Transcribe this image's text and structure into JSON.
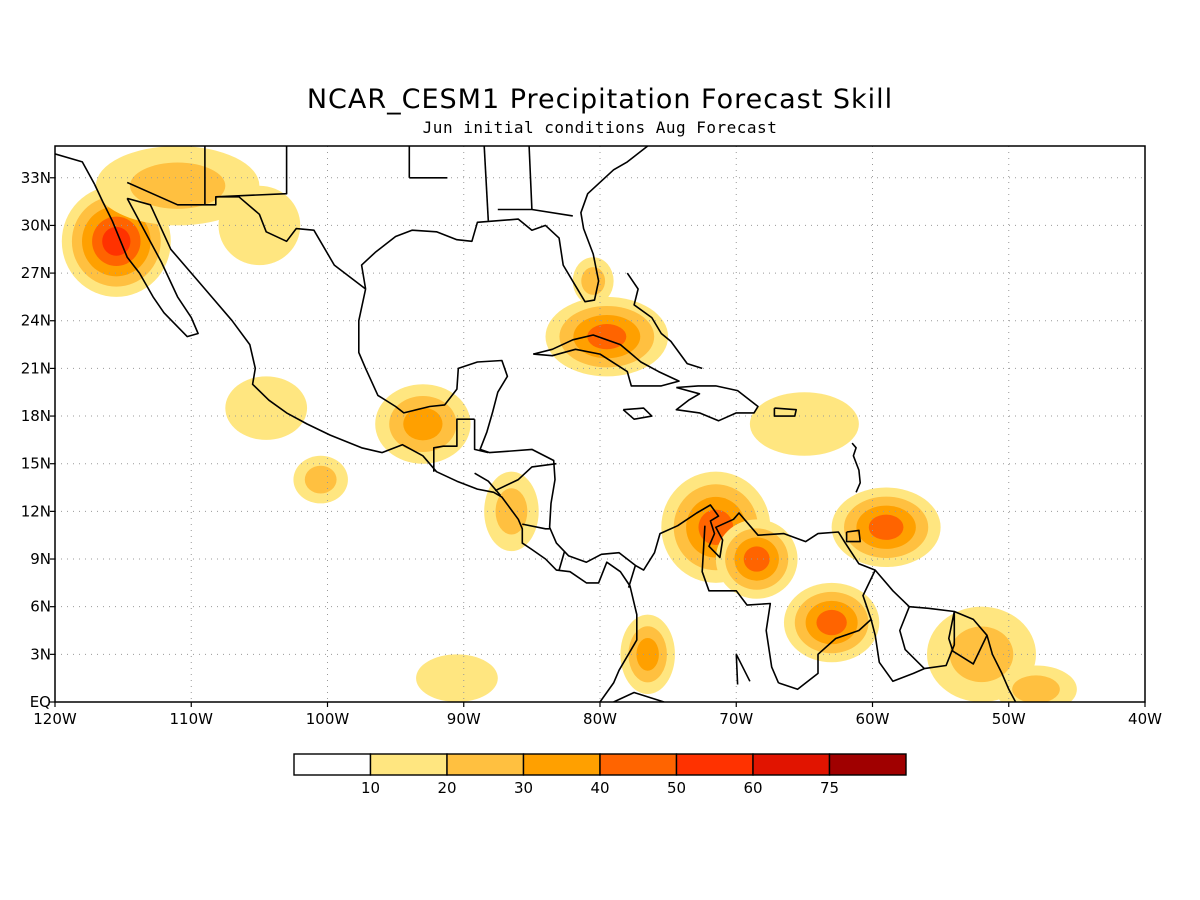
{
  "title": "NCAR_CESM1 Precipitation Forecast Skill",
  "subtitle": "Jun initial conditions  Aug Forecast",
  "map": {
    "lon_range": [
      -120,
      -40
    ],
    "lat_range": [
      0,
      35
    ],
    "lon_ticks": [
      {
        "lon": -120,
        "label": "120W"
      },
      {
        "lon": -110,
        "label": "110W"
      },
      {
        "lon": -100,
        "label": "100W"
      },
      {
        "lon": -90,
        "label": "90W"
      },
      {
        "lon": -80,
        "label": "80W"
      },
      {
        "lon": -70,
        "label": "70W"
      },
      {
        "lon": -60,
        "label": "60W"
      },
      {
        "lon": -50,
        "label": "50W"
      },
      {
        "lon": -40,
        "label": "40W"
      }
    ],
    "lat_ticks": [
      {
        "lat": 0,
        "label": "EQ"
      },
      {
        "lat": 3,
        "label": "3N"
      },
      {
        "lat": 6,
        "label": "6N"
      },
      {
        "lat": 9,
        "label": "9N"
      },
      {
        "lat": 12,
        "label": "12N"
      },
      {
        "lat": 15,
        "label": "15N"
      },
      {
        "lat": 18,
        "label": "18N"
      },
      {
        "lat": 21,
        "label": "21N"
      },
      {
        "lat": 24,
        "label": "24N"
      },
      {
        "lat": 27,
        "label": "27N"
      },
      {
        "lat": 30,
        "label": "30N"
      },
      {
        "lat": 33,
        "label": "33N"
      }
    ],
    "grid": "dotted",
    "skill_regions": [
      {
        "name": "baja-california",
        "peak": 60,
        "lon": -115.5,
        "lat": 29.0,
        "rlon": 4.0,
        "rlat": 3.5
      },
      {
        "name": "northwest-mexico",
        "peak": 30,
        "lon": -111.0,
        "lat": 32.5,
        "rlon": 6.0,
        "rlat": 2.5
      },
      {
        "name": "southern-arizona",
        "peak": 20,
        "lon": -105.0,
        "lat": 30.0,
        "rlon": 3.0,
        "rlat": 2.5
      },
      {
        "name": "western-mexico-coast",
        "peak": 20,
        "lon": -104.5,
        "lat": 18.5,
        "rlon": 3.0,
        "rlat": 2.0
      },
      {
        "name": "eastern-pacific",
        "peak": 30,
        "lon": -100.5,
        "lat": 14.0,
        "rlon": 2.0,
        "rlat": 1.5
      },
      {
        "name": "southern-mexico",
        "peak": 40,
        "lon": -93.0,
        "lat": 17.5,
        "rlon": 3.5,
        "rlat": 2.5
      },
      {
        "name": "central-america",
        "peak": 30,
        "lon": -86.5,
        "lat": 12.0,
        "rlon": 2.0,
        "rlat": 2.5
      },
      {
        "name": "cuba",
        "peak": 50,
        "lon": -79.5,
        "lat": 23.0,
        "rlon": 4.5,
        "rlat": 2.5
      },
      {
        "name": "florida",
        "peak": 30,
        "lon": -80.5,
        "lat": 26.5,
        "rlon": 1.5,
        "rlat": 1.5
      },
      {
        "name": "caribbean-north",
        "peak": 20,
        "lon": -65.0,
        "lat": 17.5,
        "rlon": 4.0,
        "rlat": 2.0
      },
      {
        "name": "venezuela-west",
        "peak": 50,
        "lon": -71.5,
        "lat": 11.0,
        "rlon": 4.0,
        "rlat": 3.5
      },
      {
        "name": "venezuela-central",
        "peak": 50,
        "lon": -68.5,
        "lat": 9.0,
        "rlon": 3.0,
        "rlat": 2.5
      },
      {
        "name": "trinidad-atlantic",
        "peak": 50,
        "lon": -59.0,
        "lat": 11.0,
        "rlon": 4.0,
        "rlat": 2.5
      },
      {
        "name": "guyana-highlands",
        "peak": 50,
        "lon": -63.0,
        "lat": 5.0,
        "rlon": 3.5,
        "rlat": 2.5
      },
      {
        "name": "colombia",
        "peak": 40,
        "lon": -76.5,
        "lat": 3.0,
        "rlon": 2.0,
        "rlat": 2.5
      },
      {
        "name": "guianas",
        "peak": 30,
        "lon": -52.0,
        "lat": 3.0,
        "rlon": 4.0,
        "rlat": 3.0
      },
      {
        "name": "amazon-delta",
        "peak": 30,
        "lon": -48.0,
        "lat": 0.8,
        "rlon": 3.0,
        "rlat": 1.5
      },
      {
        "name": "pacific-equatorial",
        "peak": 20,
        "lon": -90.5,
        "lat": 1.5,
        "rlon": 3.0,
        "rlat": 1.5
      }
    ]
  },
  "colorbar": {
    "colors": [
      "#ffffff",
      "#ffe680",
      "#ffc040",
      "#ffa000",
      "#ff6400",
      "#ff3200",
      "#e11400",
      "#a00000"
    ],
    "labels": [
      "10",
      "20",
      "30",
      "40",
      "50",
      "60",
      "75"
    ]
  }
}
